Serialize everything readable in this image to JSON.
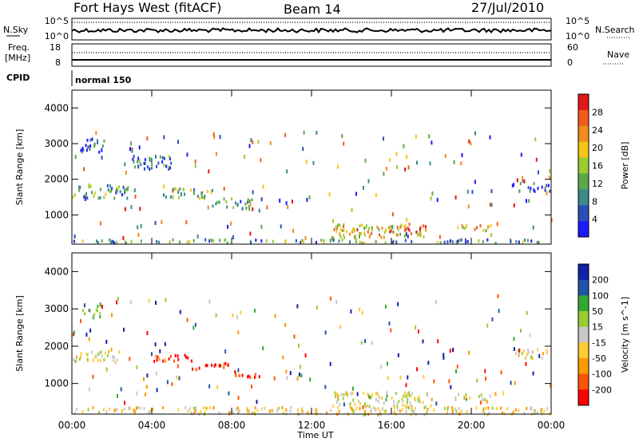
{
  "header": {
    "station": "Fort Hays West (fitACF)",
    "beam": "Beam 14",
    "date": "27/Jul/2010"
  },
  "status_panels": {
    "nsky_label": "N.Sky",
    "nsearch_label": "N.Search",
    "freq_label_top": "Freq.",
    "freq_label_bottom": "[MHz]",
    "nave_label": "Nave",
    "cpid_label": "CPID",
    "cpid_text": "normal 150",
    "noise_left_ticks": [
      "10^5",
      "10^0"
    ],
    "noise_right_ticks": [
      "10^5",
      "10^0"
    ],
    "freq_left_ticks": [
      "18",
      "8"
    ],
    "nave_right_ticks": [
      "60",
      "0"
    ]
  },
  "colors": {
    "power": [
      "#1a1aff",
      "#2a4fb8",
      "#3d8a8a",
      "#5aa84a",
      "#9acd32",
      "#f5c518",
      "#f28c1a",
      "#f25a1a",
      "#e01818"
    ],
    "velocity": [
      "#ff0000",
      "#ff5500",
      "#ff9900",
      "#ffcc33",
      "#c8c8c8",
      "#99cc33",
      "#33aa33",
      "#2255aa",
      "#1122aa"
    ]
  },
  "chart_data": [
    {
      "type": "heatmap",
      "title": "Power",
      "xlabel": "",
      "ylabel": "Slant Range [km]",
      "x_ticks": [
        "00:00",
        "04:00",
        "08:00",
        "12:00",
        "16:00",
        "20:00",
        "00:00"
      ],
      "xlim": [
        0,
        24
      ],
      "ylim": [
        180,
        4500
      ],
      "y_ticks": [
        1000,
        2000,
        3000,
        4000
      ],
      "colorbar_label": "Power [dB]",
      "colorbar_ticks": [
        4,
        8,
        12,
        16,
        20,
        24,
        28
      ],
      "clim": [
        0,
        30
      ],
      "blobs": [
        {
          "t": [
            0.0,
            2.8
          ],
          "r": [
            1500,
            1900
          ],
          "value": 10
        },
        {
          "t": [
            0.4,
            1.6
          ],
          "r": [
            2800,
            3200
          ],
          "value": 6
        },
        {
          "t": [
            3.0,
            5.0
          ],
          "r": [
            2300,
            2700
          ],
          "value": 6
        },
        {
          "t": [
            4.5,
            7.0
          ],
          "r": [
            1500,
            1800
          ],
          "value": 12
        },
        {
          "t": [
            7.0,
            9.0
          ],
          "r": [
            1200,
            1500
          ],
          "value": 8
        },
        {
          "t": [
            13.0,
            18.0
          ],
          "r": [
            400,
            800
          ],
          "value": 20
        },
        {
          "t": [
            19.0,
            21.0
          ],
          "r": [
            600,
            750
          ],
          "value": 18
        },
        {
          "t": [
            0.0,
            24.0
          ],
          "r": [
            250,
            350
          ],
          "value": 10
        },
        {
          "t": [
            22.0,
            24.0
          ],
          "r": [
            1700,
            1950
          ],
          "value": 6
        }
      ]
    },
    {
      "type": "heatmap",
      "title": "Velocity",
      "xlabel": "Time UT",
      "ylabel": "Slant Range [km]",
      "x_ticks": [
        "00:00",
        "04:00",
        "08:00",
        "12:00",
        "16:00",
        "20:00",
        "00:00"
      ],
      "xlim": [
        0,
        24
      ],
      "ylim": [
        180,
        4500
      ],
      "y_ticks": [
        1000,
        2000,
        3000,
        4000
      ],
      "colorbar_label": "Velocity [m s^-1]",
      "colorbar_ticks": [
        -200,
        -100,
        -50,
        -15,
        15,
        50,
        100,
        200
      ],
      "clim": [
        -250,
        250
      ],
      "blobs": [
        {
          "t": [
            0.0,
            2.5
          ],
          "r": [
            1600,
            1900
          ],
          "value": -5
        },
        {
          "t": [
            0.5,
            1.5
          ],
          "r": [
            2800,
            3200
          ],
          "value": 80
        },
        {
          "t": [
            4.0,
            6.0
          ],
          "r": [
            1600,
            1800
          ],
          "value": -220
        },
        {
          "t": [
            6.0,
            8.0
          ],
          "r": [
            1400,
            1600
          ],
          "value": -220
        },
        {
          "t": [
            8.0,
            9.5
          ],
          "r": [
            1200,
            1400
          ],
          "value": -200
        },
        {
          "t": [
            13.0,
            18.0
          ],
          "r": [
            400,
            800
          ],
          "value": 0
        },
        {
          "t": [
            19.0,
            21.0
          ],
          "r": [
            600,
            750
          ],
          "value": 0
        },
        {
          "t": [
            0.0,
            24.0
          ],
          "r": [
            200,
            400
          ],
          "value": -40
        },
        {
          "t": [
            22.0,
            24.0
          ],
          "r": [
            1700,
            1950
          ],
          "value": -30
        }
      ]
    }
  ]
}
